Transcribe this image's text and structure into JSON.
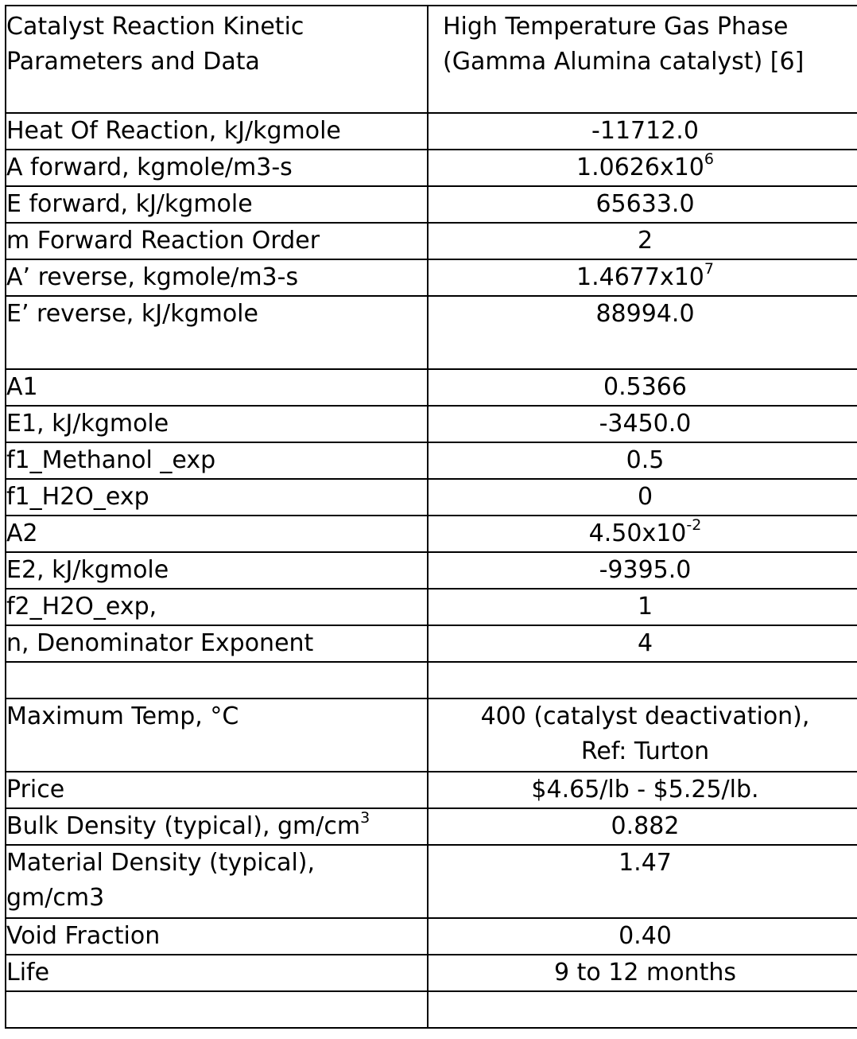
{
  "table": {
    "header": {
      "label_lines": [
        "Catalyst Reaction Kinetic",
        "Parameters and Data"
      ],
      "value_lines": [
        "High Temperature Gas Phase",
        "(Gamma Alumina catalyst) [6]"
      ]
    },
    "group1": [
      {
        "label": "Heat Of Reaction, kJ/kgmole",
        "value": "-11712.0"
      },
      {
        "label": "A forward,  kgmole/m3-s",
        "value_base": "1.0626x10",
        "value_exp": "6"
      },
      {
        "label": "E forward, kJ/kgmole",
        "value": "65633.0"
      },
      {
        "label": "m Forward Reaction Order",
        "value": "2"
      },
      {
        "label": "A’ reverse, kgmole/m3-s",
        "value_base": "1.4677x10",
        "value_exp": "7"
      },
      {
        "label": "E’ reverse, kJ/kgmole",
        "value": "88994.0"
      }
    ],
    "group2": [
      {
        "label": "A1",
        "value": "0.5366"
      },
      {
        "label": "E1, kJ/kgmole",
        "value": "-3450.0"
      },
      {
        "label": "f1_Methanol _exp",
        "value": "0.5"
      },
      {
        "label": "f1_H2O_exp",
        "value": "0"
      },
      {
        "label": "A2",
        "value_base": "4.50x10",
        "value_exp": "-2"
      },
      {
        "label": "E2, kJ/kgmole",
        "value": "-9395.0"
      },
      {
        "label": "f2_H2O_exp,",
        "value": "1"
      },
      {
        "label": "n, Denominator Exponent",
        "value": "4"
      }
    ],
    "group3": {
      "max_temp": {
        "label": "Maximum Temp, °C",
        "value_lines": [
          "400 (catalyst deactivation),",
          "Ref:  Turton"
        ]
      },
      "price": {
        "label": "Price",
        "value": "$4.65/lb - $5.25/lb."
      },
      "bulk_density": {
        "label_base": "Bulk Density (typical), gm/cm",
        "label_exp": "3",
        "value": "0.882"
      },
      "material_density": {
        "label_lines": [
          "Material Density (typical),",
          "gm/cm3"
        ],
        "value": "1.47"
      },
      "void_fraction": {
        "label": "Void Fraction",
        "value": "0.40"
      },
      "life": {
        "label": "Life",
        "value": "9 to 12 months"
      }
    }
  }
}
